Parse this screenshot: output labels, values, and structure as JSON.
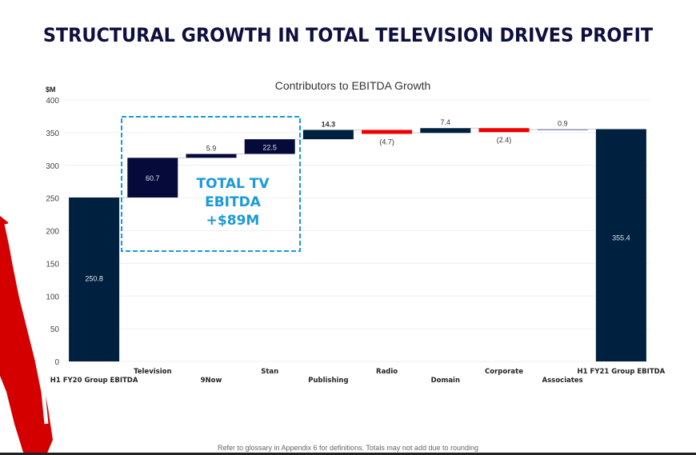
{
  "slide_title": "STRUCTURAL GROWTH IN TOTAL TELEVISION DRIVES PROFIT",
  "footnote": "Refer to glossary in Appendix 6 for definitions.  Totals may not add due to rounding",
  "callout": {
    "lines": [
      "TOTAL TV",
      "EBITDA",
      "+$89M"
    ],
    "color": "#1a9ad9"
  },
  "colors": {
    "total": "#00203f",
    "increase_tv": "#050a3a",
    "increase": "#00203f",
    "decrease": "#ee0000",
    "connector": "#cccccc"
  },
  "chart_data": {
    "type": "waterfall",
    "title": "Contributors to EBITDA Growth",
    "ylabel": "$M",
    "xlabel": "",
    "ylim": [
      0,
      400
    ],
    "yticks": [
      0,
      50,
      100,
      150,
      200,
      250,
      300,
      350,
      400
    ],
    "grid": true,
    "legend": "none",
    "categories": [
      "H1 FY20 Group EBITDA",
      "Television",
      "9Now",
      "Stan",
      "Publishing",
      "Radio",
      "Domain",
      "Corporate",
      "Associates",
      "H1 FY21 Group EBITDA"
    ],
    "values": [
      250.8,
      60.7,
      5.9,
      22.5,
      14.3,
      -4.7,
      7.4,
      -2.4,
      0.9,
      355.4
    ],
    "kinds": [
      "total",
      "increase",
      "increase",
      "increase",
      "increase",
      "decrease",
      "increase",
      "decrease",
      "increase",
      "total"
    ],
    "data_labels": [
      "250.8",
      "60.7",
      "5.9",
      "22.5",
      "14.3",
      "(4.7)",
      "7.4",
      "(2.4)",
      "0.9",
      "355.4"
    ],
    "label_row": [
      1,
      0,
      1,
      0,
      1,
      0,
      1,
      0,
      1,
      0
    ],
    "annotation": "TOTAL TV EBITDA +$89M"
  }
}
